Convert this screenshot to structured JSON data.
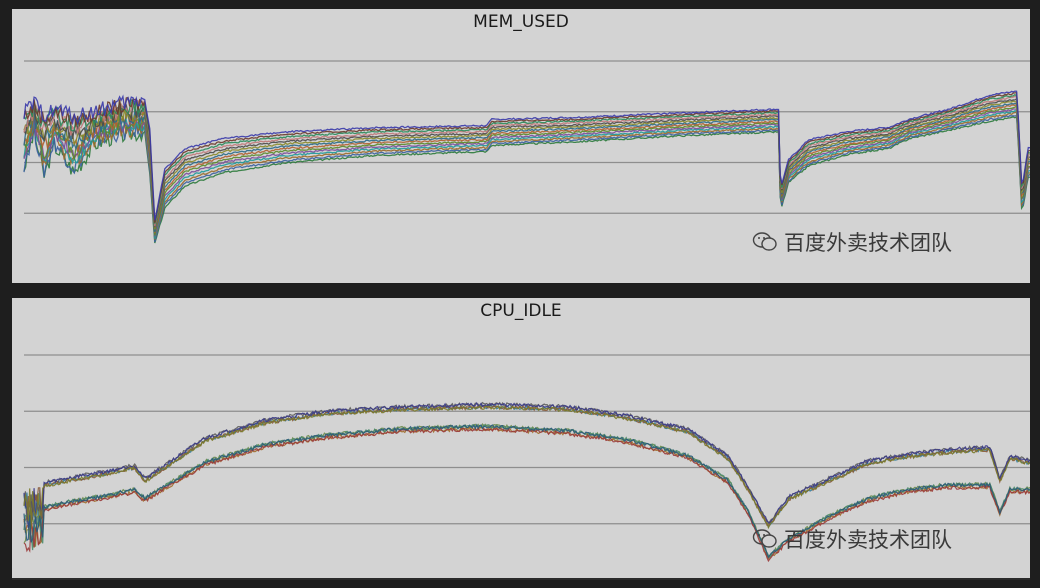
{
  "chart_data": [
    {
      "type": "line",
      "title": "MEM_USED",
      "xlabel": "",
      "ylabel": "",
      "grid": true,
      "grid_lines": 4,
      "legend": "none",
      "watermark": "百度外卖技术团队",
      "x_range": [
        0,
        100
      ],
      "y_range": [
        0,
        100
      ],
      "series_count": 14,
      "envelope": {
        "x": [
          0,
          1,
          2,
          3,
          5,
          7,
          9,
          12,
          12.5,
          13,
          14,
          16,
          20,
          26,
          35,
          46,
          46.5,
          55,
          65,
          75,
          75.2,
          76,
          78,
          82,
          86,
          88,
          92,
          96,
          98.7,
          99.2,
          99.8
        ],
        "upper": [
          76,
          80,
          75,
          78,
          74,
          76,
          79,
          82,
          68,
          22,
          48,
          58,
          63,
          66,
          68,
          69,
          72,
          73,
          75,
          77,
          38,
          52,
          62,
          66,
          68,
          72,
          77,
          84,
          86,
          38,
          58
        ],
        "lower": [
          42,
          62,
          38,
          55,
          40,
          56,
          60,
          62,
          40,
          8,
          24,
          35,
          42,
          47,
          51,
          53,
          56,
          58,
          61,
          63,
          24,
          38,
          46,
          52,
          55,
          60,
          64,
          68,
          70,
          22,
          40
        ]
      },
      "series_colors": [
        "#2b7a3b",
        "#3a5f9e",
        "#9a6a2a",
        "#1f9a9a",
        "#7a4e9a",
        "#5a8a2a",
        "#b06030",
        "#2a6a8a",
        "#8a8a2a",
        "#4a4a4a",
        "#c07a7a",
        "#2a8a5a",
        "#6a3a2a",
        "#3a3aaa"
      ]
    },
    {
      "type": "line",
      "title": "CPU_IDLE",
      "xlabel": "",
      "ylabel": "",
      "grid": true,
      "grid_lines": 4,
      "legend": "none",
      "watermark": "百度外卖技术团队",
      "x_range": [
        0,
        100
      ],
      "y_range": [
        0,
        100
      ],
      "series_count": 10,
      "groups": [
        {
          "x": [
            0,
            4,
            8,
            11,
            12,
            18,
            24,
            30,
            38,
            46,
            54,
            60,
            66,
            70,
            72,
            74,
            75,
            76,
            80,
            84,
            88,
            92,
            96,
            97,
            98,
            100
          ],
          "y": [
            40,
            44,
            47,
            50,
            44,
            62,
            70,
            74,
            76,
            77,
            76,
            72,
            66,
            54,
            40,
            24,
            30,
            36,
            44,
            52,
            55,
            57,
            58,
            44,
            54,
            52
          ]
        },
        {
          "x": [
            0,
            4,
            8,
            11,
            12,
            18,
            24,
            30,
            38,
            46,
            54,
            60,
            66,
            70,
            72,
            74,
            75,
            76,
            80,
            84,
            88,
            92,
            96,
            97,
            98,
            100
          ],
          "y": [
            30,
            34,
            37,
            40,
            36,
            52,
            60,
            64,
            67,
            68,
            66,
            62,
            55,
            44,
            30,
            10,
            14,
            18,
            28,
            36,
            40,
            42,
            42,
            30,
            40,
            40
          ]
        }
      ],
      "series_colors": [
        "#2f7a9a",
        "#6a8a4a",
        "#5a5a5a",
        "#a06a2a",
        "#8a5a3a",
        "#4a8a6a",
        "#3a3a8a",
        "#9a3a3a",
        "#7a7a2a",
        "#2a5a7a"
      ]
    }
  ]
}
